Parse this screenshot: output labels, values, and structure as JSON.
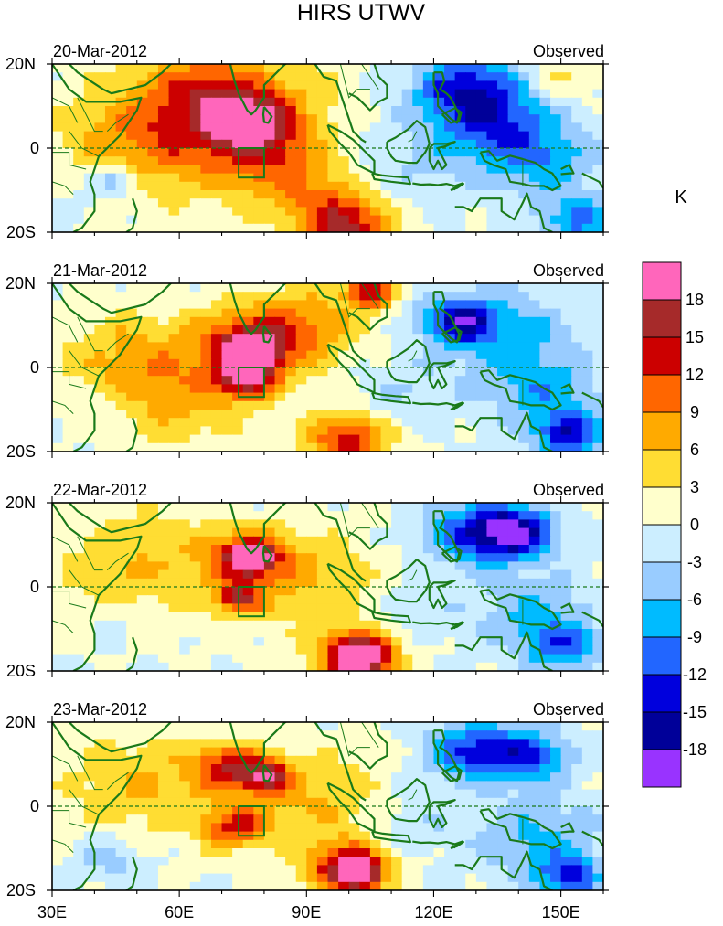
{
  "chart_data": {
    "type": "heatmap",
    "title": "HIRS UTWV",
    "units": "K",
    "panel_tag": "Observed",
    "x_ticks": [
      {
        "label": "30E",
        "value": 30
      },
      {
        "label": "60E",
        "value": 60
      },
      {
        "label": "90E",
        "value": 90
      },
      {
        "label": "120E",
        "value": 120
      },
      {
        "label": "150E",
        "value": 150
      }
    ],
    "y_ticks": [
      {
        "label": "20N",
        "value": 20
      },
      {
        "label": "0",
        "value": 0
      },
      {
        "label": "20S",
        "value": -20
      }
    ],
    "lon_range": [
      30,
      160
    ],
    "lat_range": [
      -20,
      20
    ],
    "box_region": {
      "lon": [
        74,
        80
      ],
      "lat": [
        -7,
        0
      ]
    },
    "equator_line": true,
    "panels": [
      {
        "date": "20-Mar-2012",
        "blobs": [
          {
            "lon": 50,
            "lat": 2,
            "value": 6,
            "spread": 14
          },
          {
            "lon": 68,
            "lat": 6,
            "value": 8,
            "spread": 16
          },
          {
            "lon": 77,
            "lat": 6,
            "value": 13,
            "spread": 7
          },
          {
            "lon": 68,
            "lat": 14,
            "value": 7,
            "spread": 10
          },
          {
            "lon": 84,
            "lat": -4,
            "value": 7,
            "spread": 10
          },
          {
            "lon": 100,
            "lat": -19,
            "value": 12,
            "spread": 7
          },
          {
            "lon": 95,
            "lat": -15,
            "value": 6,
            "spread": 9
          },
          {
            "lon": 45,
            "lat": -7,
            "value": -7,
            "spread": 4
          },
          {
            "lon": 40,
            "lat": -12,
            "value": -2,
            "spread": 6
          },
          {
            "lon": 128,
            "lat": 14,
            "value": -13,
            "spread": 9
          },
          {
            "lon": 135,
            "lat": 5,
            "value": -9,
            "spread": 10
          },
          {
            "lon": 146,
            "lat": -3,
            "value": -7,
            "spread": 9
          },
          {
            "lon": 154,
            "lat": -17,
            "value": -10,
            "spread": 6
          },
          {
            "lon": 114,
            "lat": -4,
            "value": -3,
            "spread": 10
          },
          {
            "lon": 150,
            "lat": 17,
            "value": 4,
            "spread": 6
          },
          {
            "lon": 92,
            "lat": 14,
            "value": 2,
            "spread": 7
          }
        ]
      },
      {
        "date": "21-Mar-2012",
        "blobs": [
          {
            "lon": 48,
            "lat": 3,
            "value": 6,
            "spread": 12
          },
          {
            "lon": 76,
            "lat": 5,
            "value": 12,
            "spread": 9
          },
          {
            "lon": 77,
            "lat": 4,
            "value": 17,
            "spread": 4
          },
          {
            "lon": 76,
            "lat": -3,
            "value": 12,
            "spread": 5
          },
          {
            "lon": 60,
            "lat": -8,
            "value": 6,
            "spread": 12
          },
          {
            "lon": 90,
            "lat": 10,
            "value": 8,
            "spread": 10
          },
          {
            "lon": 105,
            "lat": 18,
            "value": 14,
            "spread": 4
          },
          {
            "lon": 100,
            "lat": -17,
            "value": 13,
            "spread": 7
          },
          {
            "lon": 42,
            "lat": -10,
            "value": -2,
            "spread": 6
          },
          {
            "lon": 126,
            "lat": 11,
            "value": -14,
            "spread": 6
          },
          {
            "lon": 138,
            "lat": 8,
            "value": -7,
            "spread": 11
          },
          {
            "lon": 146,
            "lat": -6,
            "value": -7,
            "spread": 9
          },
          {
            "lon": 152,
            "lat": -16,
            "value": -13,
            "spread": 6
          },
          {
            "lon": 113,
            "lat": -6,
            "value": -3,
            "spread": 9
          }
        ]
      },
      {
        "date": "22-Mar-2012",
        "blobs": [
          {
            "lon": 50,
            "lat": 5,
            "value": 6,
            "spread": 14
          },
          {
            "lon": 76,
            "lat": 7,
            "value": 12,
            "spread": 7
          },
          {
            "lon": 77,
            "lat": 7,
            "value": 16,
            "spread": 3
          },
          {
            "lon": 74,
            "lat": -3,
            "value": 12,
            "spread": 4
          },
          {
            "lon": 90,
            "lat": 2,
            "value": 6,
            "spread": 12
          },
          {
            "lon": 102,
            "lat": -16,
            "value": 14,
            "spread": 7
          },
          {
            "lon": 103,
            "lat": -17,
            "value": 17,
            "spread": 4
          },
          {
            "lon": 44,
            "lat": -8,
            "value": -2,
            "spread": 6
          },
          {
            "lon": 130,
            "lat": 13,
            "value": -13,
            "spread": 8
          },
          {
            "lon": 140,
            "lat": 13,
            "value": -15,
            "spread": 6
          },
          {
            "lon": 143,
            "lat": -6,
            "value": -6,
            "spread": 10
          },
          {
            "lon": 150,
            "lat": -14,
            "value": -10,
            "spread": 6
          },
          {
            "lon": 115,
            "lat": -5,
            "value": -2,
            "spread": 8
          }
        ]
      },
      {
        "date": "23-Mar-2012",
        "blobs": [
          {
            "lon": 52,
            "lat": 5,
            "value": 6,
            "spread": 14
          },
          {
            "lon": 72,
            "lat": 9,
            "value": 12,
            "spread": 6
          },
          {
            "lon": 81,
            "lat": 7,
            "value": 12,
            "spread": 4
          },
          {
            "lon": 73,
            "lat": -5,
            "value": 12,
            "spread": 5
          },
          {
            "lon": 92,
            "lat": 2,
            "value": 6,
            "spread": 12
          },
          {
            "lon": 100,
            "lat": -15,
            "value": 16,
            "spread": 7
          },
          {
            "lon": 102,
            "lat": -16,
            "value": 19,
            "spread": 3
          },
          {
            "lon": 44,
            "lat": -12,
            "value": -5,
            "spread": 6
          },
          {
            "lon": 128,
            "lat": 13,
            "value": -12,
            "spread": 7
          },
          {
            "lon": 142,
            "lat": 12,
            "value": -12,
            "spread": 7
          },
          {
            "lon": 145,
            "lat": -8,
            "value": -7,
            "spread": 10
          },
          {
            "lon": 152,
            "lat": -17,
            "value": -12,
            "spread": 5
          },
          {
            "lon": 115,
            "lat": -4,
            "value": -3,
            "spread": 8
          }
        ]
      }
    ],
    "colorbar": {
      "levels": [
        -18,
        -15,
        -12,
        -9,
        -6,
        -3,
        0,
        3,
        6,
        9,
        12,
        15,
        18
      ],
      "labels": [
        "18",
        "15",
        "12",
        "9",
        "6",
        "3",
        "0",
        "-3",
        "-6",
        "-9",
        "-12",
        "-15",
        "-18"
      ],
      "colors": [
        "#9933ff",
        "#000099",
        "#0000dd",
        "#2266ff",
        "#00bbff",
        "#99ccff",
        "#cceeff",
        "#ffffcc",
        "#ffdd33",
        "#ffaa00",
        "#ff6600",
        "#cc0000",
        "#a62a2a",
        "#ff66bb"
      ]
    },
    "coast_color": "#1a7a1a"
  }
}
